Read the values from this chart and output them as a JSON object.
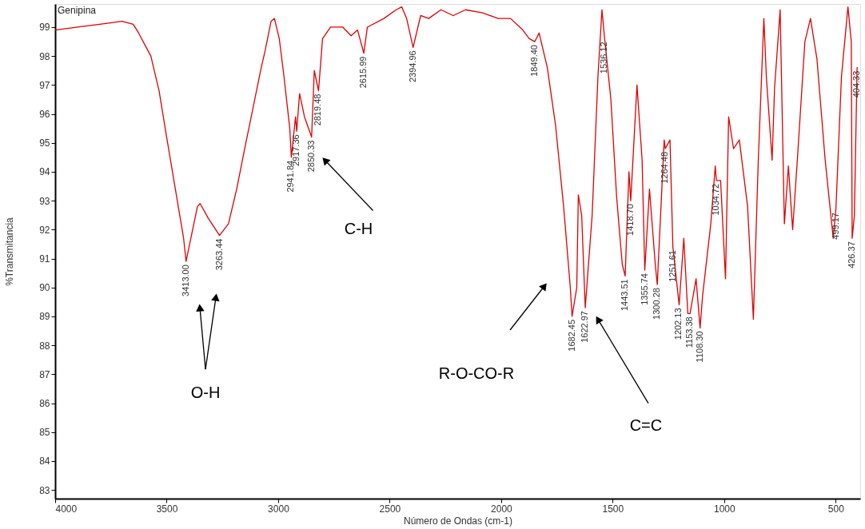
{
  "chart_data": {
    "type": "line",
    "title": "Genipina",
    "xlabel": "Número de Ondas (cm-1)",
    "ylabel": "%Transmitancia",
    "x": [
      4000,
      3900,
      3800,
      3700,
      3650,
      3626,
      3571,
      3534,
      3498,
      3461,
      3424,
      3413,
      3362,
      3350,
      3314,
      3263,
      3223,
      3186,
      3150,
      3113,
      3076,
      3058,
      3032,
      3017,
      2995,
      2974,
      2948,
      2941,
      2922,
      2917,
      2904,
      2882,
      2850,
      2838,
      2819,
      2801,
      2765,
      2710,
      2673,
      2644,
      2616,
      2600,
      2526,
      2471,
      2446,
      2424,
      2395,
      2361,
      2325,
      2270,
      2215,
      2160,
      2086,
      2013,
      1958,
      1903,
      1874,
      1849,
      1830,
      1793,
      1756,
      1720,
      1690,
      1682,
      1661,
      1654,
      1639,
      1623,
      1592,
      1566,
      1548,
      1536,
      1508,
      1482,
      1457,
      1444,
      1427,
      1419,
      1391,
      1368,
      1356,
      1335,
      1309,
      1300,
      1269,
      1264,
      1243,
      1230,
      1202,
      1181,
      1163,
      1153,
      1126,
      1108,
      1097,
      1060,
      1040,
      1035,
      1016,
      994,
      980,
      958,
      932,
      895,
      869,
      847,
      822,
      811,
      785,
      774,
      749,
      730,
      712,
      693,
      672,
      638,
      613,
      584,
      547,
      511,
      499,
      474,
      445,
      430,
      426,
      416,
      404,
      401
    ],
    "series": [
      {
        "color": "#e00000",
        "values": [
          98.9,
          99.0,
          99.1,
          99.2,
          99.1,
          98.8,
          98.0,
          96.8,
          95.1,
          93.4,
          91.7,
          90.9,
          92.8,
          92.9,
          92.4,
          91.8,
          92.2,
          93.4,
          94.8,
          96.2,
          97.6,
          98.2,
          99.2,
          99.3,
          98.6,
          97.3,
          95.5,
          94.5,
          95.9,
          95.4,
          96.7,
          95.9,
          95.2,
          97.5,
          96.8,
          98.6,
          99.0,
          99.0,
          98.7,
          98.9,
          98.1,
          99.0,
          99.3,
          99.6,
          99.7,
          99.3,
          98.3,
          99.4,
          99.3,
          99.6,
          99.4,
          99.6,
          99.5,
          99.3,
          99.3,
          98.9,
          98.6,
          98.5,
          98.8,
          97.6,
          95.6,
          92.8,
          90.0,
          89.0,
          90.0,
          93.2,
          92.5,
          89.3,
          92.5,
          97.3,
          99.6,
          98.6,
          96.5,
          93.1,
          90.8,
          90.4,
          94.0,
          93.0,
          97.0,
          94.4,
          90.6,
          93.4,
          90.8,
          90.1,
          95.1,
          94.8,
          95.1,
          91.4,
          89.4,
          91.7,
          89.1,
          89.1,
          90.3,
          88.6,
          89.7,
          92.2,
          94.2,
          93.7,
          93.7,
          90.3,
          95.9,
          94.8,
          95.1,
          92.8,
          88.9,
          94.4,
          99.3,
          97.3,
          94.4,
          96.9,
          99.6,
          92.2,
          94.2,
          92.0,
          94.4,
          98.5,
          99.3,
          97.9,
          94.4,
          91.7,
          92.7,
          97.3,
          99.7,
          98.5,
          91.7,
          92.5,
          97.6,
          97.6
        ]
      }
    ],
    "xlim": [
      4000,
      390
    ],
    "ylim": [
      82.7,
      99.8
    ],
    "xticks": [
      4000,
      3500,
      3000,
      2500,
      2000,
      1500,
      1000,
      500
    ],
    "yticks": [
      83,
      84,
      85,
      86,
      87,
      88,
      89,
      90,
      91,
      92,
      93,
      94,
      95,
      96,
      97,
      98,
      99
    ],
    "grid": false,
    "annotations": [
      {
        "text": "3413.00",
        "x": 3413,
        "y": 90.9
      },
      {
        "text": "3263.44",
        "x": 3263,
        "y": 91.8
      },
      {
        "text": "2941.84",
        "x": 2941,
        "y": 94.5
      },
      {
        "text": "2917.36",
        "x": 2917,
        "y": 95.4
      },
      {
        "text": "2850.33",
        "x": 2850,
        "y": 95.2
      },
      {
        "text": "2819.48",
        "x": 2819,
        "y": 96.8
      },
      {
        "text": "2615.99",
        "x": 2616,
        "y": 98.1
      },
      {
        "text": "2394.96",
        "x": 2395,
        "y": 98.3
      },
      {
        "text": "1849.40",
        "x": 1849,
        "y": 98.5
      },
      {
        "text": "1682.45",
        "x": 1682,
        "y": 89.0
      },
      {
        "text": "1622.97",
        "x": 1623,
        "y": 89.3
      },
      {
        "text": "1536.12",
        "x": 1536,
        "y": 98.6
      },
      {
        "text": "1443.51",
        "x": 1444,
        "y": 90.4
      },
      {
        "text": "1418.70",
        "x": 1419,
        "y": 93.0
      },
      {
        "text": "1355.74",
        "x": 1356,
        "y": 90.6
      },
      {
        "text": "1300.28",
        "x": 1300,
        "y": 90.1
      },
      {
        "text": "1264.48",
        "x": 1264,
        "y": 94.8
      },
      {
        "text": "1251.61",
        "x": 1230,
        "y": 91.4
      },
      {
        "text": "1202.13",
        "x": 1202,
        "y": 89.4
      },
      {
        "text": "1153.38",
        "x": 1153,
        "y": 89.1
      },
      {
        "text": "1108.30",
        "x": 1108,
        "y": 88.6
      },
      {
        "text": "1034.72",
        "x": 1035,
        "y": 93.7
      },
      {
        "text": "499.17",
        "x": 499,
        "y": 92.7
      },
      {
        "text": "426.37",
        "x": 426,
        "y": 91.7
      },
      {
        "text": "404.33",
        "x": 404,
        "y": 97.6
      },
      {
        "text": "O-H",
        "x": 3351,
        "y": 89.3
      },
      {
        "text": "C-H",
        "x": 2790,
        "y": 94.4
      },
      "R-O-CO-R",
      {
        "text": "C=C",
        "x": 1566,
        "y": 88.9
      }
    ]
  }
}
